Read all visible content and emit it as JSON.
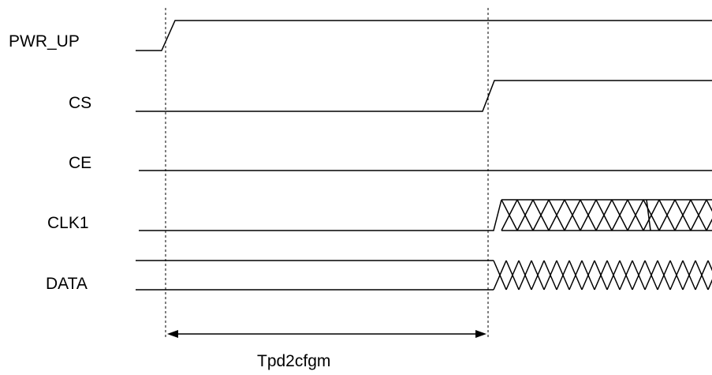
{
  "signals": [
    {
      "id": "pwr_up",
      "label": "PWR_UP",
      "kind": "rising",
      "transition": "marker1"
    },
    {
      "id": "cs",
      "label": "CS",
      "kind": "rising",
      "transition": "marker2"
    },
    {
      "id": "ce",
      "label": "CE",
      "kind": "low"
    },
    {
      "id": "clk1",
      "label": "CLK1",
      "kind": "toggling",
      "transition": "marker2"
    },
    {
      "id": "data",
      "label": "DATA",
      "kind": "bus-toggling",
      "transition": "marker2"
    }
  ],
  "timing": {
    "label": "Tpd2cfgm",
    "from": "marker1",
    "to": "marker2"
  },
  "colors": {
    "line": "#000000",
    "background": "#ffffff"
  }
}
